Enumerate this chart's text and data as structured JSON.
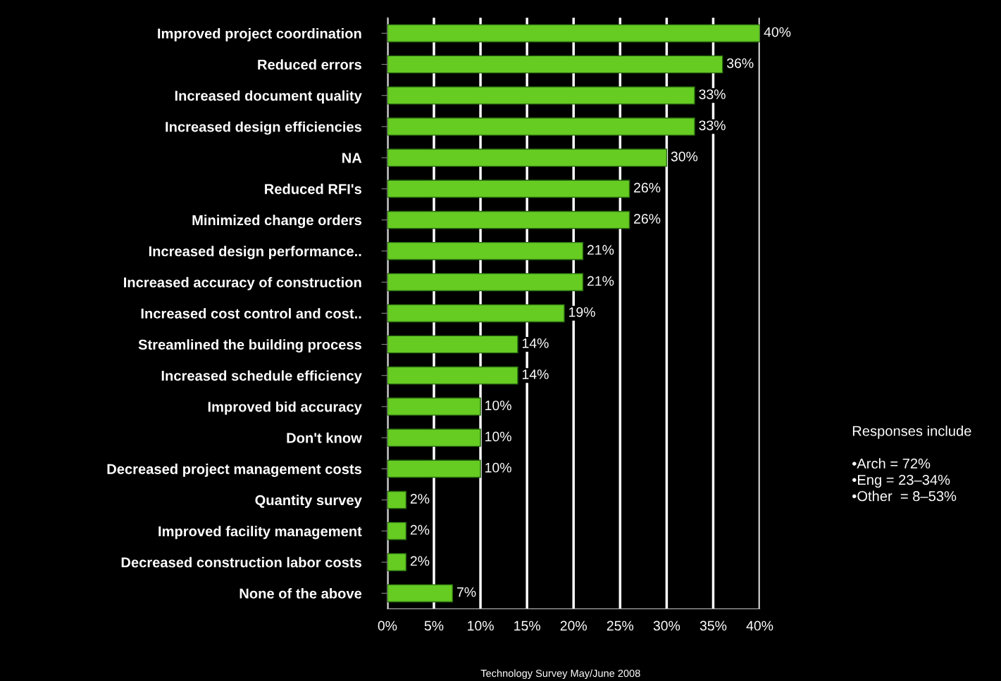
{
  "chart_data": {
    "type": "bar",
    "orientation": "horizontal",
    "categories": [
      "Improved project coordination",
      "Reduced errors",
      "Increased document quality",
      "Increased design efficiencies",
      "NA",
      "Reduced RFI's",
      "Minimized change orders",
      "Increased design performance..",
      "Increased accuracy of construction",
      "Increased cost control and cost..",
      "Streamlined the building process",
      "Increased schedule efficiency",
      "Improved bid accuracy",
      "Don't know",
      "Decreased project management costs",
      "Quantity survey",
      "Improved facility management",
      "Decreased construction labor costs",
      "None of the above"
    ],
    "values": [
      40,
      36,
      33,
      33,
      30,
      26,
      26,
      21,
      21,
      19,
      14,
      14,
      10,
      10,
      10,
      2,
      2,
      2,
      7
    ],
    "value_labels": [
      "40%",
      "36%",
      "33%",
      "33%",
      "30%",
      "26%",
      "26%",
      "21%",
      "21%",
      "19%",
      "14%",
      "14%",
      "10%",
      "10%",
      "10%",
      "2%",
      "2%",
      "2%",
      "7%"
    ],
    "color": "#66cc22",
    "xlim": [
      0,
      40
    ],
    "xticks": [
      {
        "value": 0,
        "label": "0%"
      },
      {
        "value": 5,
        "label": "5%"
      },
      {
        "value": 10,
        "label": "10%"
      },
      {
        "value": 15,
        "label": "15%"
      },
      {
        "value": 20,
        "label": "20%"
      },
      {
        "value": 25,
        "label": "25%"
      },
      {
        "value": 30,
        "label": "30%"
      },
      {
        "value": 35,
        "label": "35%"
      },
      {
        "value": 40,
        "label": "40%"
      }
    ],
    "grid": "x",
    "annotations": [
      "Responses include\n\n•Arch = 72%\n•Eng = 23–34%\n•Other  = 8–53%",
      "Technology Survey May/June 2008"
    ]
  }
}
